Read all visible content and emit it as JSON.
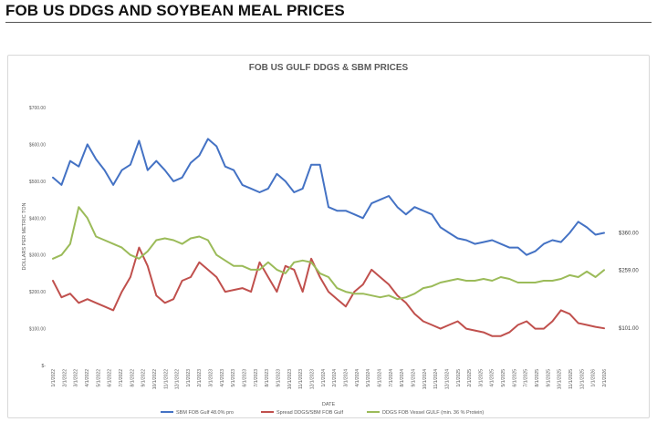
{
  "header": {
    "title": "FOB US DDGS AND SOYBEAN MEAL PRICES"
  },
  "chart_data": {
    "type": "line",
    "title": "FOB US GULF DDGS & SBM PRICES",
    "xlabel": "DATE",
    "ylabel": "DOLLARS PER METRIC TON",
    "ylim": [
      0,
      700
    ],
    "yticks": [
      "$-",
      "$100.00",
      "$200.00",
      "$300.00",
      "$400.00",
      "$500.00",
      "$600.00",
      "$700.00"
    ],
    "grid": false,
    "legend": "bottom",
    "x_tick_labels": [
      "1/1/2022",
      "2/1/2022",
      "3/1/2022",
      "4/1/2022",
      "5/1/2022",
      "6/1/2022",
      "7/1/2022",
      "8/1/2022",
      "9/1/2022",
      "10/1/2022",
      "11/1/2022",
      "12/1/2022",
      "1/1/2023",
      "2/1/2023",
      "3/1/2023",
      "4/1/2023",
      "5/1/2023",
      "6/1/2023",
      "7/1/2023",
      "8/1/2023",
      "9/1/2023",
      "10/1/2023",
      "11/1/2023",
      "12/1/2023",
      "1/1/2024",
      "2/1/2024",
      "3/1/2024",
      "4/1/2024",
      "5/1/2024",
      "6/1/2024",
      "7/1/2024",
      "8/1/2024",
      "9/1/2024",
      "10/1/2024",
      "11/1/2024",
      "12/1/2024",
      "1/1/2025",
      "2/1/2025",
      "3/1/2025",
      "4/1/2025",
      "5/1/2025",
      "6/1/2025",
      "7/1/2025",
      "8/1/2025",
      "9/1/2025",
      "10/1/2025",
      "11/1/2025",
      "12/1/2025",
      "1/1/2026",
      "2/1/2026"
    ],
    "series": [
      {
        "name": "SBM FOB Gulf 48.0% pro",
        "color": "#4472c4",
        "end_label": "$360.00",
        "values": [
          510,
          490,
          555,
          540,
          600,
          560,
          530,
          490,
          530,
          545,
          610,
          530,
          555,
          530,
          500,
          510,
          550,
          570,
          615,
          595,
          540,
          530,
          490,
          480,
          470,
          480,
          520,
          500,
          470,
          480,
          545,
          545,
          430,
          420,
          420,
          410,
          400,
          440,
          450,
          460,
          430,
          410,
          430,
          420,
          410,
          375,
          360,
          345,
          340,
          330,
          335,
          340,
          330,
          320,
          320,
          300,
          310,
          330,
          340,
          335,
          360,
          390,
          375,
          355,
          360
        ]
      },
      {
        "name": "Spread DDGS/SBM FOB Gulf",
        "color": "#c0504d",
        "end_label": "$101.00",
        "values": [
          230,
          185,
          195,
          170,
          180,
          170,
          160,
          150,
          200,
          240,
          320,
          270,
          190,
          170,
          180,
          230,
          240,
          280,
          260,
          240,
          200,
          205,
          210,
          200,
          280,
          240,
          200,
          270,
          260,
          200,
          290,
          240,
          200,
          180,
          160,
          200,
          220,
          260,
          240,
          220,
          190,
          170,
          140,
          120,
          110,
          100,
          110,
          120,
          100,
          95,
          90,
          80,
          80,
          90,
          110,
          120,
          100,
          100,
          120,
          150,
          140,
          115,
          110,
          105,
          101
        ]
      },
      {
        "name": "DDGS FOB Vessel GULF (min. 36 % Protein)",
        "color": "#9bbb59",
        "end_label": "$259.00",
        "values": [
          290,
          300,
          330,
          430,
          400,
          350,
          340,
          330,
          320,
          300,
          290,
          310,
          340,
          345,
          340,
          330,
          345,
          350,
          340,
          300,
          285,
          270,
          270,
          260,
          260,
          280,
          260,
          250,
          280,
          285,
          280,
          250,
          240,
          210,
          200,
          195,
          195,
          190,
          185,
          190,
          180,
          185,
          195,
          210,
          215,
          225,
          230,
          235,
          230,
          230,
          235,
          230,
          240,
          235,
          225,
          225,
          225,
          230,
          230,
          235,
          245,
          240,
          255,
          240,
          259
        ]
      }
    ]
  }
}
